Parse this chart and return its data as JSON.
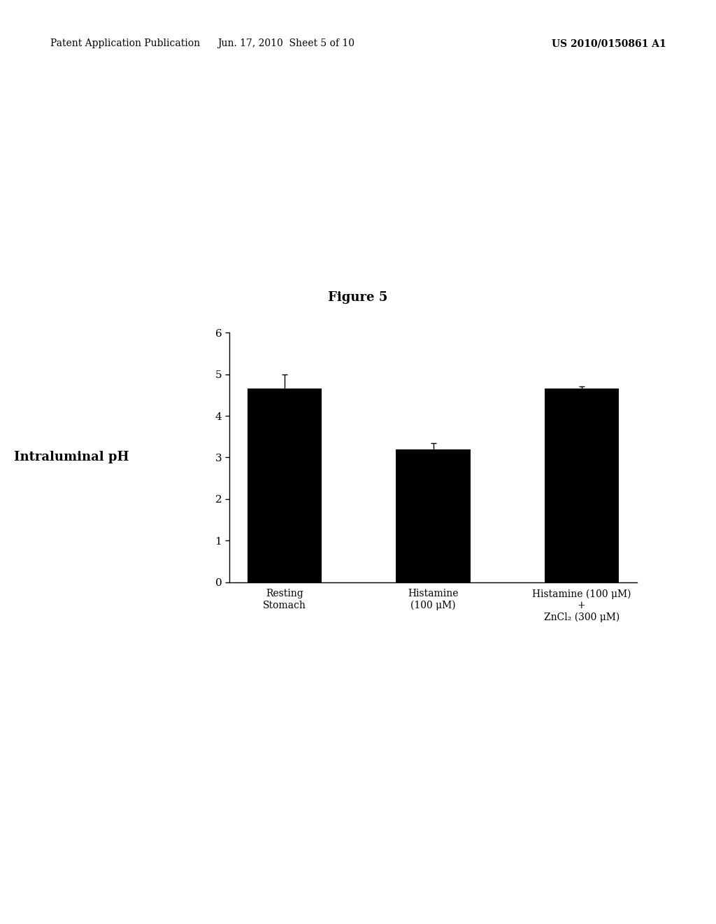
{
  "title": "Figure 5",
  "ylabel": "Intraluminal pH",
  "categories": [
    "Resting\nStomach",
    "Histamine\n(100 μM)",
    "Histamine (100 μM)\n+\nZnCl₂ (300 μM)"
  ],
  "values": [
    4.65,
    3.2,
    4.65
  ],
  "errors": [
    0.35,
    0.15,
    0.05
  ],
  "bar_color": "#000000",
  "bar_width": 0.5,
  "ylim": [
    0,
    6
  ],
  "yticks": [
    0,
    1,
    2,
    3,
    4,
    5,
    6
  ],
  "background_color": "#ffffff",
  "header_left": "Patent Application Publication",
  "header_center": "Jun. 17, 2010  Sheet 5 of 10",
  "header_right": "US 2010/0150861 A1",
  "header_fontsize": 10,
  "title_fontsize": 13,
  "ylabel_fontsize": 13,
  "tick_fontsize": 11,
  "xtick_fontsize": 10
}
